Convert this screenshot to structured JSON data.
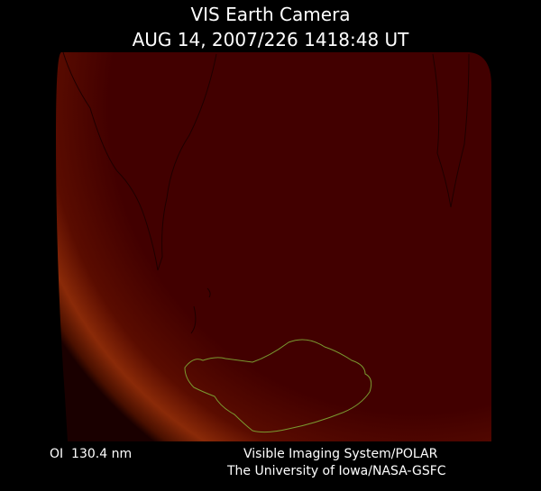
{
  "header": {
    "title": "VIS Earth Camera",
    "timestamp": "AUG 14, 2007/226 1418:48 UT"
  },
  "footer": {
    "wavelength": "OI  130.4 nm",
    "credit_lines": [
      "Visible Imaging System/POLAR",
      "The University of Iowa/NASA-GSFC"
    ]
  }
}
